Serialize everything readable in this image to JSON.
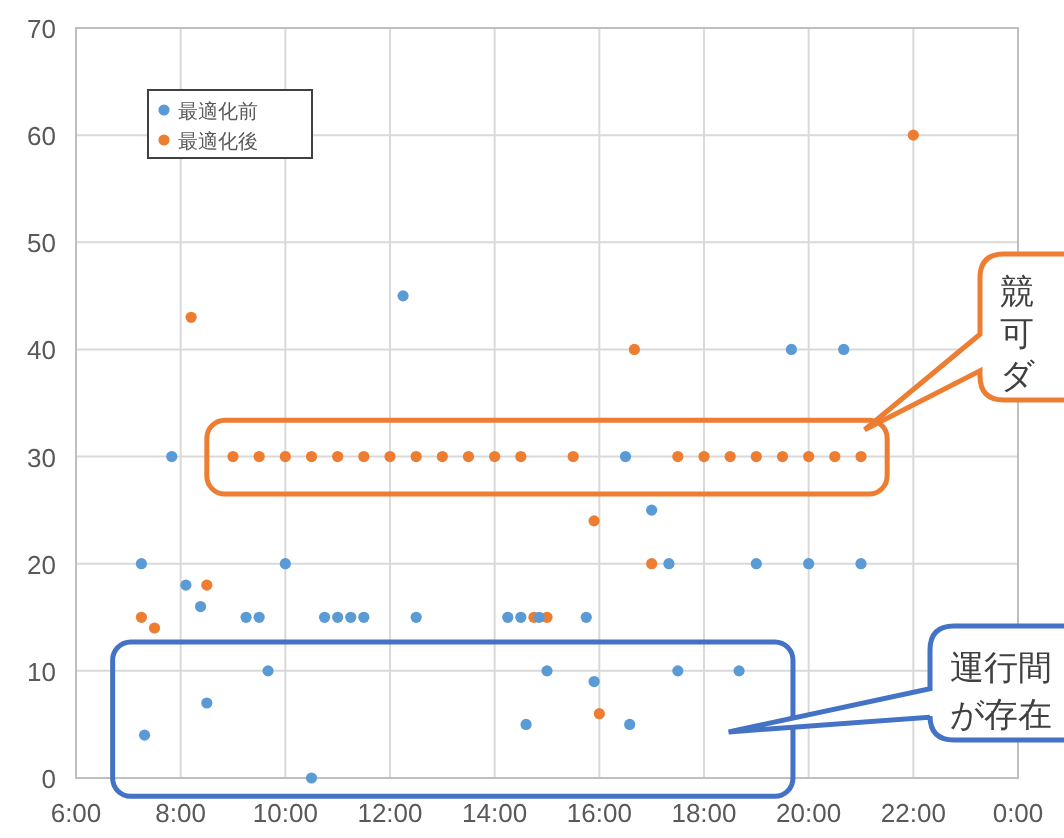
{
  "chart_data": {
    "type": "scatter",
    "xlim": [
      6,
      24
    ],
    "xticks": [
      {
        "value": 6,
        "label": "6:00"
      },
      {
        "value": 8,
        "label": "8:00"
      },
      {
        "value": 10,
        "label": "10:00"
      },
      {
        "value": 12,
        "label": "12:00"
      },
      {
        "value": 14,
        "label": "14:00"
      },
      {
        "value": 16,
        "label": "16:00"
      },
      {
        "value": 18,
        "label": "18:00"
      },
      {
        "value": 20,
        "label": "20:00"
      },
      {
        "value": 22,
        "label": "22:00"
      },
      {
        "value": 24,
        "label": "0:00"
      }
    ],
    "ylim": [
      0,
      70
    ],
    "yticks": [
      0,
      10,
      20,
      30,
      40,
      50,
      60,
      70
    ],
    "grid": true,
    "legend": "top left",
    "marker": "circle",
    "series": [
      {
        "name": "最適化前",
        "color": "#5b9bd5",
        "x": [
          7.83,
          7.25,
          7.31,
          8.1,
          8.38,
          8.5,
          9.25,
          9.5,
          9.67,
          10.0,
          10.5,
          10.75,
          11.0,
          11.25,
          11.5,
          12.25,
          12.5,
          14.25,
          14.5,
          14.6,
          14.85,
          15.0,
          15.75,
          15.9,
          16.5,
          16.58,
          17.0,
          17.33,
          17.5,
          18.67,
          19.0,
          19.67,
          20.0,
          20.67,
          21.0
        ],
        "values": [
          30,
          20,
          4,
          18,
          16,
          7,
          15,
          15,
          10,
          20,
          0,
          15,
          15,
          15,
          15,
          45,
          15,
          15,
          15,
          5,
          15,
          10,
          15,
          9,
          30,
          5,
          25,
          20,
          10,
          10,
          20,
          40,
          20,
          40,
          20
        ]
      },
      {
        "name": "最適化後",
        "color": "#ed7d31",
        "x": [
          7.25,
          7.5,
          8.2,
          8.5,
          9.0,
          9.5,
          10.0,
          10.5,
          11.0,
          11.5,
          12.0,
          12.5,
          13.0,
          13.5,
          14.0,
          14.5,
          14.75,
          15.0,
          15.5,
          15.9,
          16.0,
          16.67,
          17.0,
          17.5,
          18.0,
          18.5,
          19.0,
          19.5,
          20.0,
          20.5,
          21.0,
          22.0
        ],
        "values": [
          15,
          14,
          43,
          18,
          30,
          30,
          30,
          30,
          30,
          30,
          30,
          30,
          30,
          30,
          30,
          30,
          15,
          15,
          30,
          24,
          6,
          40,
          20,
          30,
          30,
          30,
          30,
          30,
          30,
          30,
          30,
          60
        ]
      }
    ],
    "annotations": [
      "競可ダ",
      "運行間が存在"
    ]
  }
}
